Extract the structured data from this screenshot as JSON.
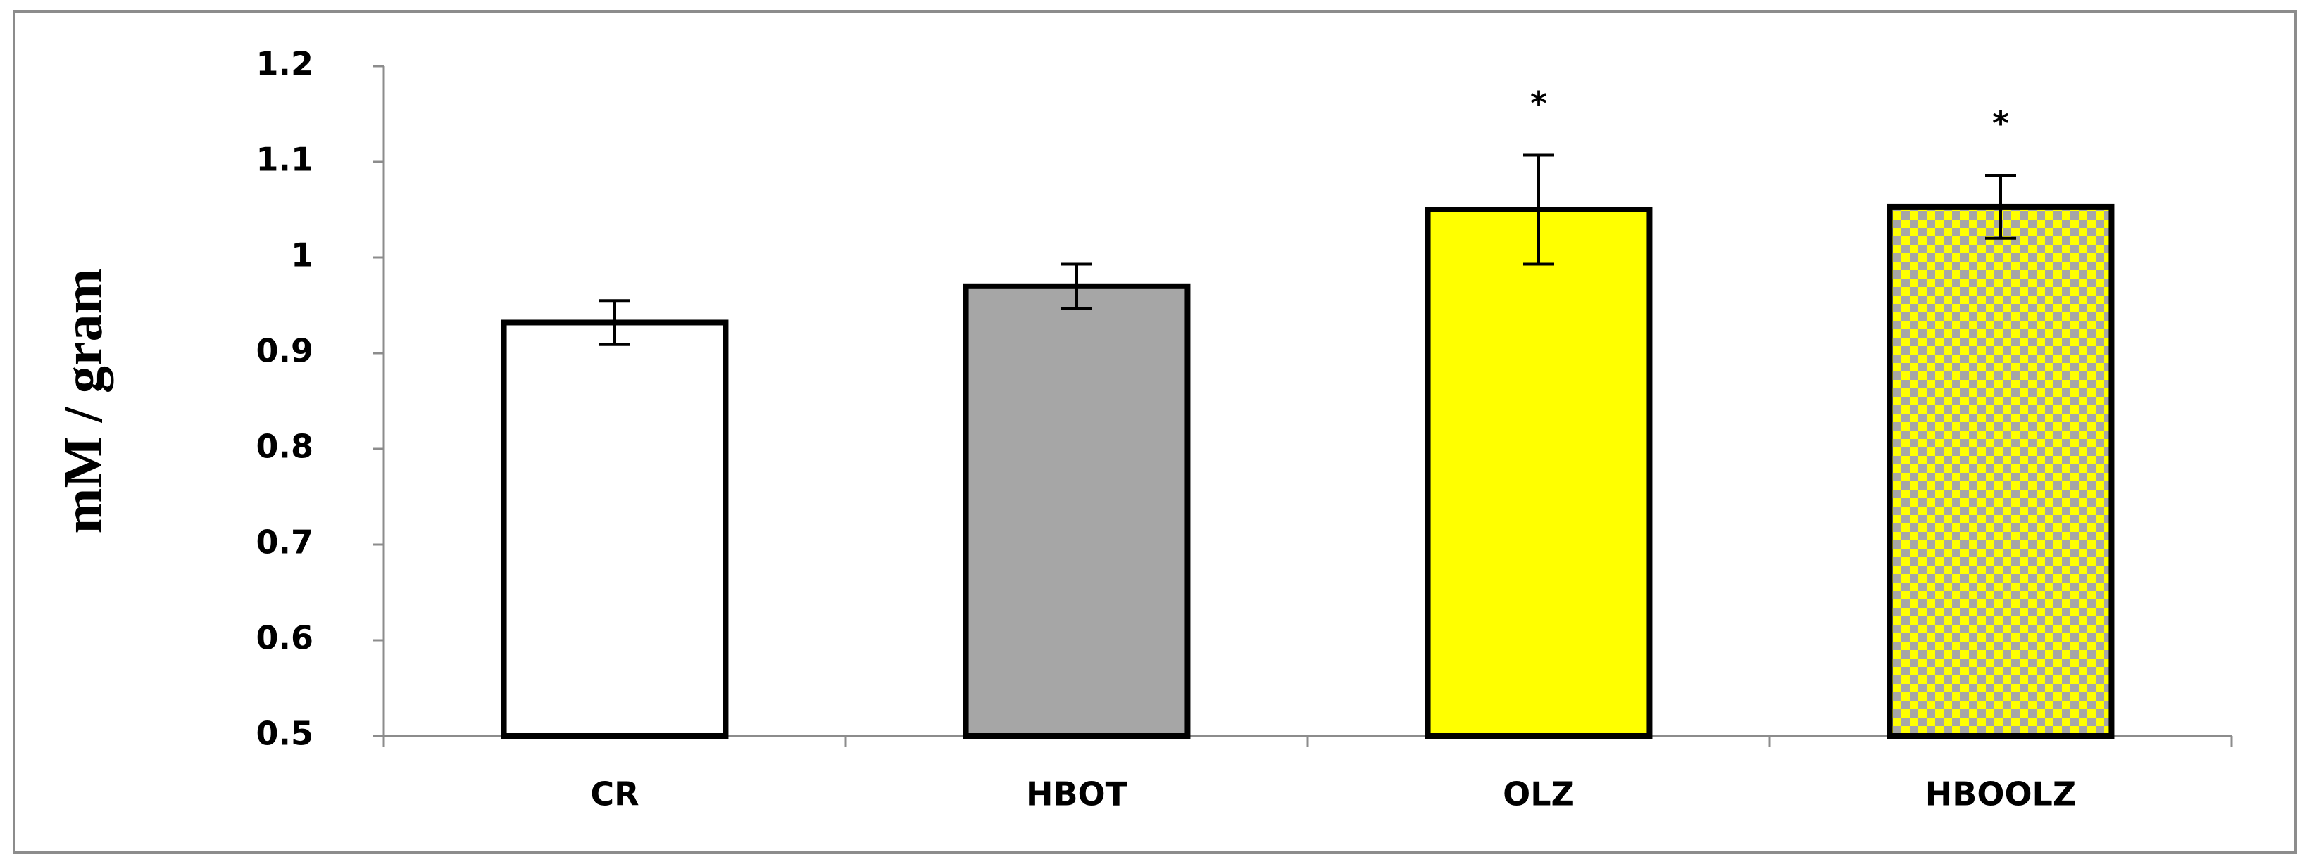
{
  "chart_data": {
    "type": "bar",
    "y_label": "mM / gram",
    "categories": [
      "CR",
      "HBOT",
      "OLZ",
      "HBOOLZ"
    ],
    "values": [
      0.932,
      0.97,
      1.05,
      1.053
    ],
    "errors": [
      0.023,
      0.023,
      0.057,
      0.033
    ],
    "annotations": [
      null,
      null,
      "*",
      "*"
    ],
    "colors": [
      "#ffffff",
      "#a6a6a6",
      "#ffff00",
      "#ffff00"
    ],
    "fill_patterns": [
      "solid",
      "solid",
      "solid",
      "checker"
    ],
    "ylim": [
      0.5,
      1.2
    ],
    "yticks": [
      0.5,
      0.6,
      0.7,
      0.8,
      0.9,
      1,
      1.1,
      1.2
    ],
    "grid": false
  }
}
